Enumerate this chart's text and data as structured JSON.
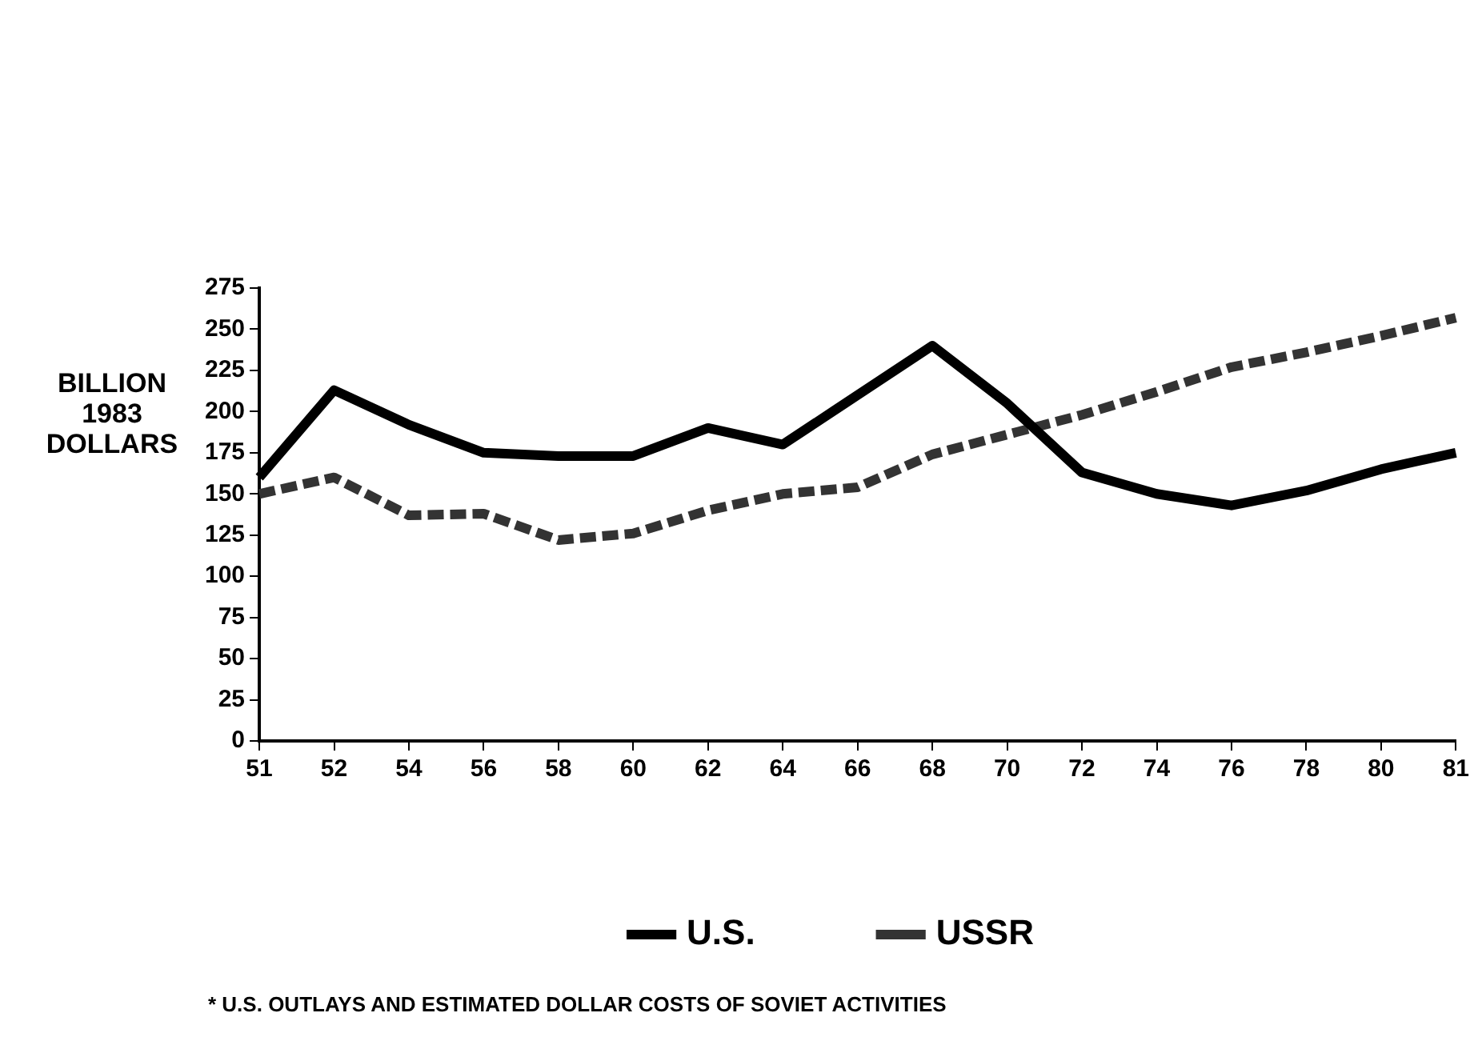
{
  "chart_data": {
    "type": "line",
    "ylabel": "BILLION 1983 DOLLARS",
    "categories": [
      "51",
      "52",
      "54",
      "56",
      "58",
      "60",
      "62",
      "64",
      "66",
      "68",
      "70",
      "72",
      "74",
      "76",
      "78",
      "80",
      "81"
    ],
    "series": [
      {
        "name": "U.S.",
        "color": "#000000",
        "values": [
          160,
          213,
          192,
          175,
          173,
          173,
          190,
          180,
          210,
          240,
          205,
          163,
          150,
          143,
          152,
          165,
          175
        ]
      },
      {
        "name": "USSR",
        "color": "#333333",
        "line_style": "dashed",
        "values": [
          150,
          160,
          137,
          138,
          122,
          126,
          140,
          150,
          154,
          174,
          186,
          198,
          212,
          227,
          236,
          246,
          257
        ]
      }
    ],
    "ylim": [
      0,
      275
    ],
    "yticks": [
      0,
      25,
      50,
      75,
      100,
      125,
      150,
      175,
      200,
      225,
      250,
      275
    ],
    "grid": false,
    "legend": "bottom",
    "marker": "none",
    "annotations": [
      "* U.S. OUTLAYS AND ESTIMATED DOLLAR COSTS OF SOVIET ACTIVITIES"
    ]
  }
}
